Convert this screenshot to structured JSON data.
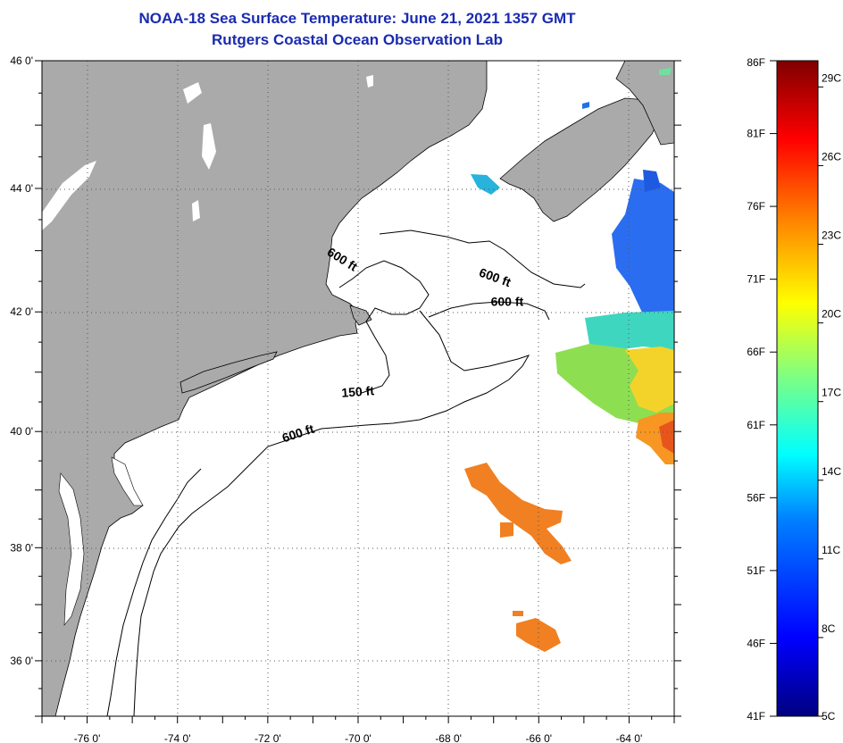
{
  "title": {
    "line1": "NOAA-18 Sea Surface Temperature:  June 21, 2021 1357 GMT",
    "line2": "Rutgers Coastal Ocean Observation Lab"
  },
  "map": {
    "lon_range": [
      -77,
      -63
    ],
    "lat_range": [
      35,
      46
    ],
    "lon_ticks": [
      {
        "value": -76,
        "label": "-76 0'"
      },
      {
        "value": -74,
        "label": "-74 0'"
      },
      {
        "value": -72,
        "label": "-72 0'"
      },
      {
        "value": -70,
        "label": "-70 0'"
      },
      {
        "value": -68,
        "label": "-68 0'"
      },
      {
        "value": -66,
        "label": "-66 0'"
      },
      {
        "value": -64,
        "label": "-64 0'"
      }
    ],
    "lat_ticks": [
      {
        "value": 46,
        "label": "46 0'"
      },
      {
        "value": 44,
        "label": "44 0'"
      },
      {
        "value": 42,
        "label": "42 0'"
      },
      {
        "value": 40,
        "label": "40 0'"
      },
      {
        "value": 38,
        "label": "38 0'"
      },
      {
        "value": 36,
        "label": "36 0'"
      }
    ],
    "contour_labels": [
      {
        "text": "600 ft",
        "lon": -70.4,
        "lat": 42.8,
        "angle": 32
      },
      {
        "text": "600 ft",
        "lon": -67.0,
        "lat": 42.5,
        "angle": 20
      },
      {
        "text": "600 ft",
        "lon": -66.7,
        "lat": 42.1,
        "angle": 0
      },
      {
        "text": "150 ft",
        "lon": -70.0,
        "lat": 40.6,
        "angle": -4
      },
      {
        "text": "600 ft",
        "lon": -71.3,
        "lat": 39.9,
        "angle": -18
      }
    ],
    "colors": {
      "land": "#aaaaaa",
      "ocean": "#ffffff",
      "coast": "#000000",
      "grid": "#555555"
    }
  },
  "colorbar": {
    "min_f": 41,
    "max_f": 86,
    "fahrenheit_labels": [
      "86F",
      "81F",
      "76F",
      "71F",
      "66F",
      "61F",
      "56F",
      "51F",
      "46F",
      "41F"
    ],
    "celsius_labels": [
      "29C",
      "26C",
      "23C",
      "20C",
      "17C",
      "14C",
      "11C",
      "8C",
      "5C"
    ],
    "celsius_values": [
      29,
      26,
      23,
      20,
      17,
      14,
      11,
      8,
      5
    ],
    "palette": [
      "#00007f",
      "#0000ff",
      "#0080ff",
      "#00ffff",
      "#80ff80",
      "#ffff00",
      "#ff8000",
      "#ff0000",
      "#7f0000"
    ]
  }
}
